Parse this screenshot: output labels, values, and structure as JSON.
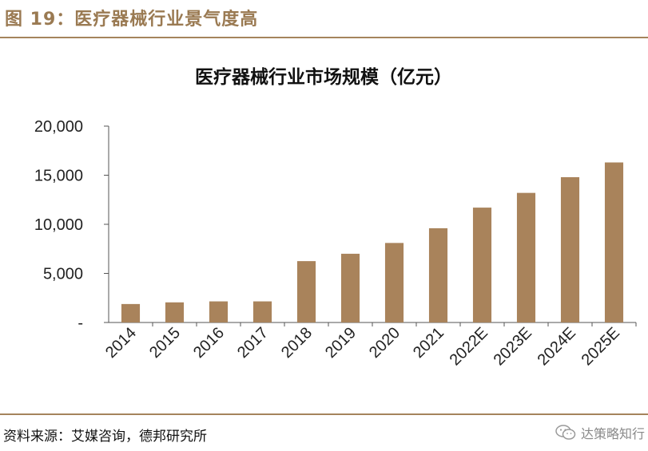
{
  "figure": {
    "title": "图 19：医疗器械行业景气度高",
    "source": "资料来源：艾媒咨询，德邦研究所",
    "watermark": "达策略知行"
  },
  "colors": {
    "bar": "#a9835b",
    "accent": "#a5845c",
    "title": "#9a7a52",
    "axis": "#555555"
  },
  "chart_data": {
    "type": "bar",
    "title": "医疗器械行业市场规模（亿元）",
    "xlabel": "",
    "ylabel": "",
    "categories": [
      "2014",
      "2015",
      "2016",
      "2017",
      "2018",
      "2019",
      "2020",
      "2021",
      "2022E",
      "2023E",
      "2024E",
      "2025E"
    ],
    "values": [
      1880,
      2050,
      2150,
      2150,
      6250,
      7000,
      8100,
      9600,
      11700,
      13200,
      14800,
      16300
    ],
    "ylim": [
      0,
      20000
    ],
    "yticks": [
      0,
      5000,
      10000,
      15000,
      20000
    ],
    "ytick_labels": [
      "-",
      "5,000",
      "10,000",
      "15,000",
      "20,000"
    ],
    "grid": false,
    "legend": "none"
  }
}
